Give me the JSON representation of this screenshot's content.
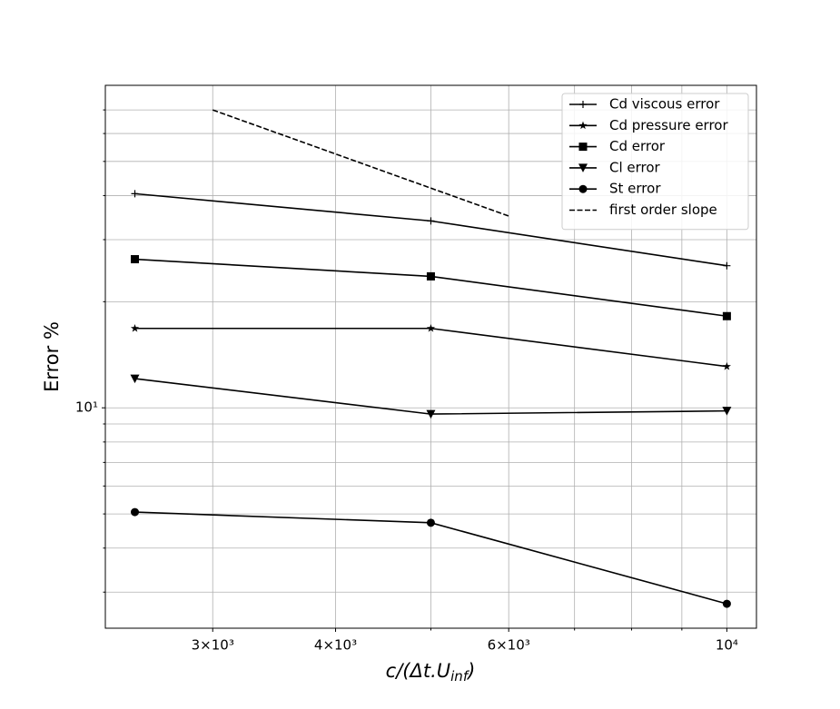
{
  "chart_data": {
    "type": "line",
    "xlabel": {
      "main": "c/(Δt.U",
      "sub": "inf",
      "end": ")"
    },
    "ylabel": "Error %",
    "x": [
      2500,
      5000,
      10000
    ],
    "xscale": "log",
    "yscale": "log",
    "xlim": [
      2333,
      10718
    ],
    "ylim": [
      2.37,
      82.2
    ],
    "xticks": [
      {
        "value": 3000,
        "label": "3×10³"
      },
      {
        "value": 4000,
        "label": "4×10³"
      },
      {
        "value": 6000,
        "label": "6×10³"
      },
      {
        "value": 10000,
        "label": "10⁴"
      }
    ],
    "x_minor_ticks": [
      5000,
      7000,
      8000,
      9000
    ],
    "yticks": [
      {
        "value": 10,
        "label": "10¹"
      }
    ],
    "y_minor_ticks": [
      3,
      4,
      5,
      6,
      7,
      8,
      9,
      20,
      30,
      40,
      50,
      60,
      70
    ],
    "grid": true,
    "legend": "upper right",
    "series": [
      {
        "name": "Cd viscous error",
        "color": "#000000",
        "marker": "plus",
        "values": [
          40.5,
          33.9,
          25.3
        ]
      },
      {
        "name": "Cd pressure error",
        "color": "#000000",
        "marker": "star",
        "values": [
          16.8,
          16.8,
          13.1
        ]
      },
      {
        "name": "Cd error",
        "color": "#000000",
        "marker": "square",
        "values": [
          26.4,
          23.6,
          18.2
        ]
      },
      {
        "name": "Cl error",
        "color": "#000000",
        "marker": "triangle-down",
        "values": [
          12.1,
          9.6,
          9.8
        ]
      },
      {
        "name": "St error",
        "color": "#000000",
        "marker": "circle",
        "values": [
          5.06,
          4.72,
          2.78
        ]
      },
      {
        "name": "first order slope",
        "color": "#000000",
        "dash": true,
        "x": [
          3000,
          6000
        ],
        "values": [
          70,
          35
        ]
      }
    ]
  }
}
